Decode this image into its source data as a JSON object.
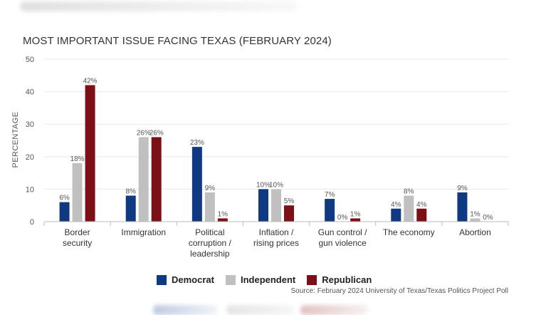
{
  "chart_data": {
    "type": "bar",
    "title": "MOST IMPORTANT ISSUE FACING TEXAS (FEBRUARY 2024)",
    "ylabel": "PERCENTAGE",
    "xlabel": "",
    "ylim": [
      0,
      50
    ],
    "yticks": [
      "0",
      "10",
      "20",
      "30",
      "40",
      "50"
    ],
    "grid": true,
    "legend_position": "bottom",
    "categories": [
      [
        "Border",
        "security"
      ],
      [
        "Immigration"
      ],
      [
        "Political",
        "corruption /",
        "leadership"
      ],
      [
        "Inflation /",
        "rising prices"
      ],
      [
        "Gun control /",
        "gun violence"
      ],
      [
        "The economy"
      ],
      [
        "Abortion"
      ]
    ],
    "series": [
      {
        "name": "Democrat",
        "color": "#0f3a82",
        "values": [
          6,
          8,
          23,
          10,
          7,
          4,
          9
        ],
        "labels": [
          "6%",
          "8%",
          "23%",
          "10%",
          "7%",
          "4%",
          "9%"
        ]
      },
      {
        "name": "Independent",
        "color": "#c0c0c0",
        "values": [
          18,
          26,
          9,
          10,
          0,
          8,
          1
        ],
        "labels": [
          "18%",
          "26%",
          "9%",
          "10%",
          "0%",
          "8%",
          "1%"
        ]
      },
      {
        "name": "Republican",
        "color": "#7d0f16",
        "values": [
          42,
          26,
          1,
          5,
          1,
          4,
          0
        ],
        "labels": [
          "42%",
          "26%",
          "1%",
          "5%",
          "1%",
          "4%",
          "0%"
        ]
      }
    ],
    "source": "Source: February 2024 University of Texas/Texas Politics Project Poll"
  }
}
